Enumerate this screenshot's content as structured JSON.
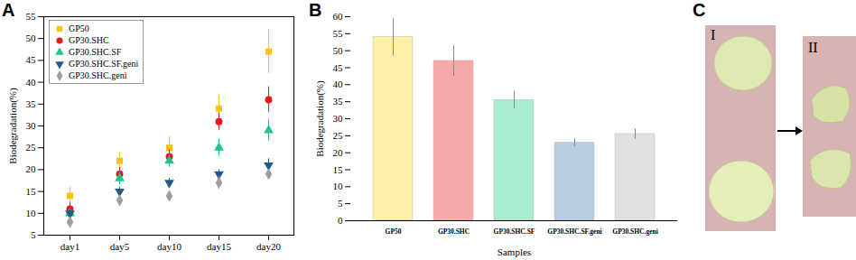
{
  "chart_data": [
    {
      "type": "scatter",
      "title": "A",
      "categories": [
        "day1",
        "day5",
        "day10",
        "day15",
        "day20"
      ],
      "y_label": "Biodegradation(%)",
      "ylim": [
        5,
        55
      ],
      "yticks": [
        5,
        10,
        15,
        20,
        25,
        30,
        35,
        40,
        45,
        50,
        55
      ],
      "grid": false,
      "legend": "upper left",
      "series": [
        {
          "name": "GP50",
          "color": "#ffc20e",
          "marker": "square",
          "values": [
            14,
            22,
            25,
            34,
            47
          ],
          "errors": [
            2,
            2,
            2.5,
            3,
            5
          ]
        },
        {
          "name": "GP30.SHC",
          "color": "#e31a1c",
          "marker": "circle",
          "values": [
            11,
            19,
            23,
            31,
            36
          ],
          "errors": [
            1.5,
            1.5,
            1.5,
            2,
            3
          ]
        },
        {
          "name": "GP30.SHC.SF",
          "color": "#20c48c",
          "marker": "triangle",
          "values": [
            10,
            18,
            22,
            25,
            29
          ],
          "errors": [
            1,
            1.5,
            1.5,
            2,
            2.5
          ]
        },
        {
          "name": "GP30.SHC.SF.geni",
          "color": "#1f5a8a",
          "marker": "triangle-down",
          "values": [
            10,
            15,
            17,
            19,
            21
          ],
          "errors": [
            1,
            1,
            1,
            1,
            1.5
          ]
        },
        {
          "name": "GP30.SHC.geni",
          "color": "#9e9e9e",
          "marker": "diamond",
          "values": [
            8,
            13,
            14,
            17,
            19
          ],
          "errors": [
            1,
            1,
            1,
            1.5,
            1
          ]
        }
      ]
    },
    {
      "type": "bar",
      "title": "B",
      "categories": [
        "GP50",
        "GP30.SHC",
        "GP30.SHC.SF",
        "GP30.SHC.SF.geni",
        "GP30.SHC.geni"
      ],
      "values": [
        54,
        47,
        35.5,
        23,
        25.5
      ],
      "errors": [
        5.5,
        4.5,
        2.5,
        1.2,
        1.5
      ],
      "colors": [
        "#fcf0a6",
        "#f7a8a8",
        "#a9eed0",
        "#b9cde0",
        "#e0e0e0"
      ],
      "x_label": "Samples",
      "y_label": "Biodegradation(%)",
      "ylim": [
        0,
        60
      ],
      "yticks": [
        0,
        5,
        10,
        15,
        20,
        25,
        30,
        35,
        40,
        45,
        50,
        55,
        60
      ],
      "grid": false
    }
  ],
  "photo": {
    "title": "C",
    "labels": [
      "I",
      "II"
    ]
  }
}
